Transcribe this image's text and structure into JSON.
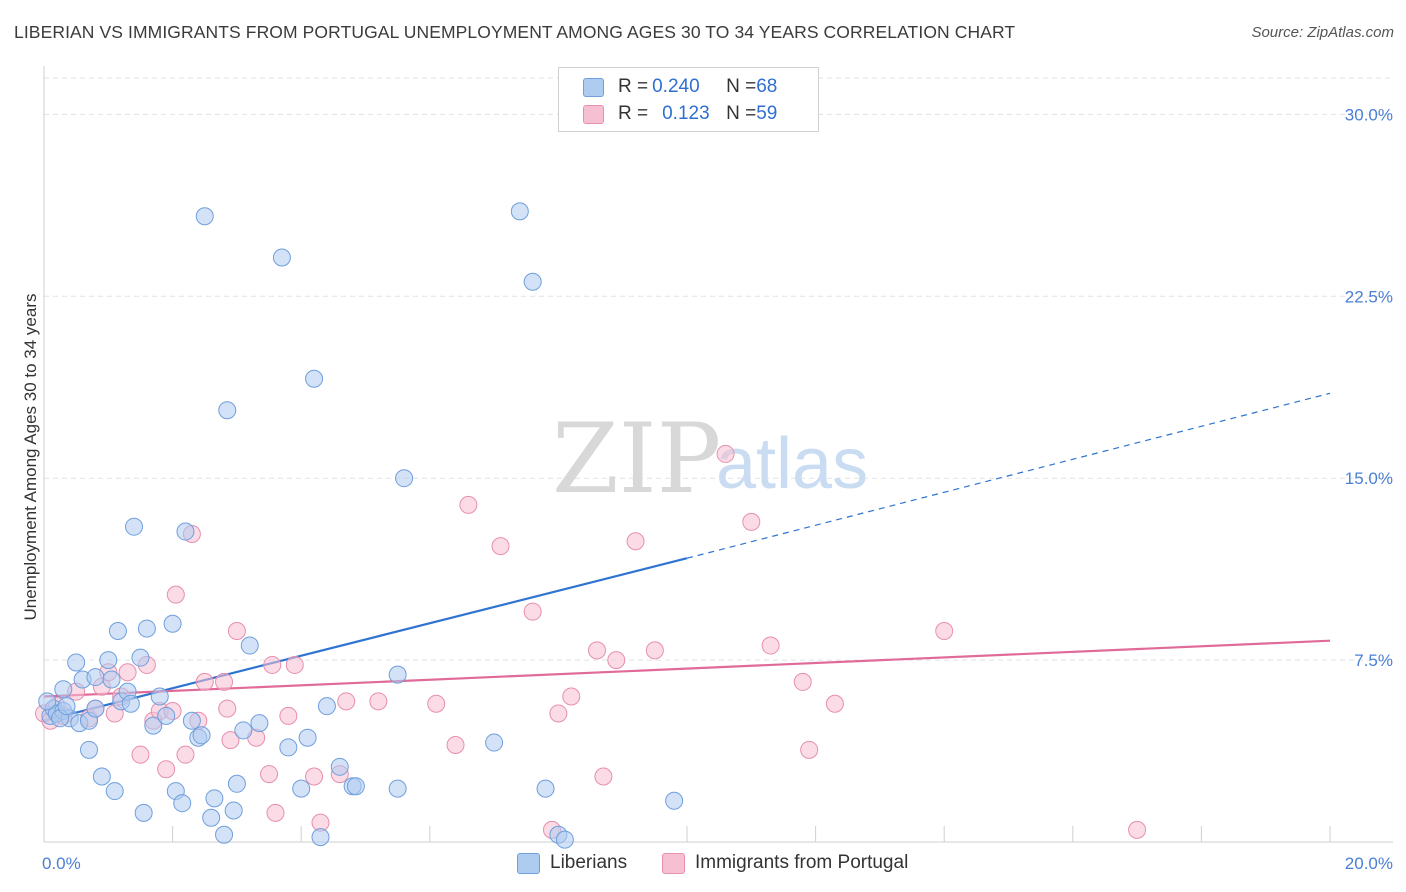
{
  "title": "LIBERIAN VS IMMIGRANTS FROM PORTUGAL UNEMPLOYMENT AMONG AGES 30 TO 34 YEARS CORRELATION CHART",
  "source": "Source: ZipAtlas.com",
  "watermark": {
    "zip": "ZIP",
    "atlas": "atlas"
  },
  "legend": {
    "series1": {
      "r_label": "R = ",
      "r_value": "0.240",
      "n_label": "N = ",
      "n_value": "68"
    },
    "series2": {
      "r_label": "R = ",
      "r_value": "0.123",
      "n_label": "N = ",
      "n_value": "59"
    }
  },
  "colors": {
    "blue_fill": "#aecbf0",
    "blue_stroke": "#6f9fdc",
    "blue_line": "#2f74d0",
    "pink_fill": "#f7c0d2",
    "pink_stroke": "#e78fae",
    "pink_line": "#e06a98",
    "grid": "#e2e2e2",
    "axis_text": "#4a7fd4"
  },
  "chart_data": {
    "type": "scatter",
    "title": "LIBERIAN VS IMMIGRANTS FROM PORTUGAL UNEMPLOYMENT AMONG AGES 30 TO 34 YEARS CORRELATION CHART",
    "xlabel": "",
    "ylabel": "Unemployment Among Ages 30 to 34 years",
    "xlim": [
      0,
      20
    ],
    "ylim": [
      0,
      31.5
    ],
    "x_tick_labels": [
      "0.0%",
      "20.0%"
    ],
    "y_ticks": [
      7.5,
      15.0,
      22.5,
      30.0
    ],
    "y_tick_labels": [
      "7.5%",
      "15.0%",
      "22.5%",
      "30.0%"
    ],
    "legend_position": "top-center",
    "series": [
      {
        "name": "Liberians",
        "r": 0.24,
        "n": 68,
        "trend": {
          "x_start": 0.0,
          "y_start": 5.0,
          "x_solid_end": 10.0,
          "y_solid_end": 11.7,
          "x_end": 20.0,
          "y_end": 18.5
        },
        "points": [
          [
            0.1,
            5.2
          ],
          [
            0.15,
            5.5
          ],
          [
            0.2,
            5.3
          ],
          [
            0.3,
            5.4
          ],
          [
            0.3,
            6.3
          ],
          [
            0.4,
            5.1
          ],
          [
            0.5,
            7.4
          ],
          [
            0.55,
            4.9
          ],
          [
            0.6,
            6.7
          ],
          [
            0.7,
            3.8
          ],
          [
            0.7,
            5.0
          ],
          [
            0.8,
            5.5
          ],
          [
            0.8,
            6.8
          ],
          [
            0.9,
            2.7
          ],
          [
            1.0,
            7.5
          ],
          [
            1.05,
            6.7
          ],
          [
            1.1,
            2.1
          ],
          [
            1.15,
            8.7
          ],
          [
            1.2,
            5.8
          ],
          [
            1.3,
            6.2
          ],
          [
            1.35,
            5.7
          ],
          [
            1.4,
            13.0
          ],
          [
            1.5,
            7.6
          ],
          [
            1.55,
            1.2
          ],
          [
            1.6,
            8.8
          ],
          [
            1.7,
            4.8
          ],
          [
            1.8,
            6.0
          ],
          [
            1.9,
            5.2
          ],
          [
            2.0,
            9.0
          ],
          [
            2.05,
            2.1
          ],
          [
            2.15,
            1.6
          ],
          [
            2.2,
            12.8
          ],
          [
            2.3,
            5.0
          ],
          [
            2.4,
            4.3
          ],
          [
            2.45,
            4.4
          ],
          [
            2.5,
            25.8
          ],
          [
            2.6,
            1.0
          ],
          [
            2.65,
            1.8
          ],
          [
            2.8,
            0.3
          ],
          [
            2.85,
            17.8
          ],
          [
            2.95,
            1.3
          ],
          [
            3.0,
            2.4
          ],
          [
            3.1,
            4.6
          ],
          [
            3.2,
            8.1
          ],
          [
            3.35,
            4.9
          ],
          [
            3.7,
            24.1
          ],
          [
            3.8,
            3.9
          ],
          [
            4.0,
            2.2
          ],
          [
            4.1,
            4.3
          ],
          [
            4.2,
            19.1
          ],
          [
            4.3,
            0.2
          ],
          [
            4.4,
            5.6
          ],
          [
            4.6,
            3.1
          ],
          [
            4.8,
            2.3
          ],
          [
            4.85,
            2.3
          ],
          [
            5.5,
            2.2
          ],
          [
            5.5,
            6.9
          ],
          [
            5.6,
            15.0
          ],
          [
            7.0,
            4.1
          ],
          [
            7.4,
            26.0
          ],
          [
            7.6,
            23.1
          ],
          [
            7.8,
            2.2
          ],
          [
            8.0,
            0.3
          ],
          [
            8.1,
            0.1
          ],
          [
            9.8,
            1.7
          ],
          [
            0.05,
            5.8
          ],
          [
            0.25,
            5.1
          ],
          [
            0.35,
            5.6
          ]
        ]
      },
      {
        "name": "Immigrants from Portugal",
        "r": 0.123,
        "n": 59,
        "trend": {
          "x_start": 0.0,
          "y_start": 6.0,
          "x_end": 20.0,
          "y_end": 8.3
        },
        "points": [
          [
            0.0,
            5.3
          ],
          [
            0.1,
            5.0
          ],
          [
            0.2,
            5.6
          ],
          [
            0.3,
            5.2
          ],
          [
            0.5,
            6.2
          ],
          [
            0.7,
            5.1
          ],
          [
            0.8,
            5.5
          ],
          [
            0.9,
            6.4
          ],
          [
            1.0,
            7.0
          ],
          [
            1.1,
            5.3
          ],
          [
            1.2,
            6.0
          ],
          [
            1.3,
            7.0
          ],
          [
            1.5,
            3.6
          ],
          [
            1.6,
            7.3
          ],
          [
            1.7,
            5.0
          ],
          [
            1.8,
            5.4
          ],
          [
            1.9,
            3.0
          ],
          [
            2.0,
            5.4
          ],
          [
            2.05,
            10.2
          ],
          [
            2.2,
            3.6
          ],
          [
            2.3,
            12.7
          ],
          [
            2.4,
            5.0
          ],
          [
            2.5,
            6.6
          ],
          [
            2.8,
            6.6
          ],
          [
            2.85,
            5.5
          ],
          [
            2.9,
            4.2
          ],
          [
            3.0,
            8.7
          ],
          [
            3.3,
            4.3
          ],
          [
            3.5,
            2.8
          ],
          [
            3.55,
            7.3
          ],
          [
            3.6,
            1.2
          ],
          [
            3.8,
            5.2
          ],
          [
            3.9,
            7.3
          ],
          [
            4.2,
            2.7
          ],
          [
            4.3,
            0.8
          ],
          [
            4.6,
            2.8
          ],
          [
            4.7,
            5.8
          ],
          [
            5.2,
            5.8
          ],
          [
            6.1,
            5.7
          ],
          [
            6.4,
            4.0
          ],
          [
            6.6,
            13.9
          ],
          [
            7.1,
            12.2
          ],
          [
            7.6,
            9.5
          ],
          [
            7.9,
            0.5
          ],
          [
            8.0,
            5.3
          ],
          [
            8.2,
            6.0
          ],
          [
            8.6,
            7.9
          ],
          [
            8.7,
            2.7
          ],
          [
            8.9,
            7.5
          ],
          [
            9.2,
            12.4
          ],
          [
            9.5,
            7.9
          ],
          [
            10.6,
            16.0
          ],
          [
            11.0,
            13.2
          ],
          [
            11.3,
            8.1
          ],
          [
            11.8,
            6.6
          ],
          [
            11.9,
            3.8
          ],
          [
            12.3,
            5.7
          ],
          [
            14.0,
            8.7
          ],
          [
            17.0,
            0.5
          ]
        ]
      }
    ]
  }
}
